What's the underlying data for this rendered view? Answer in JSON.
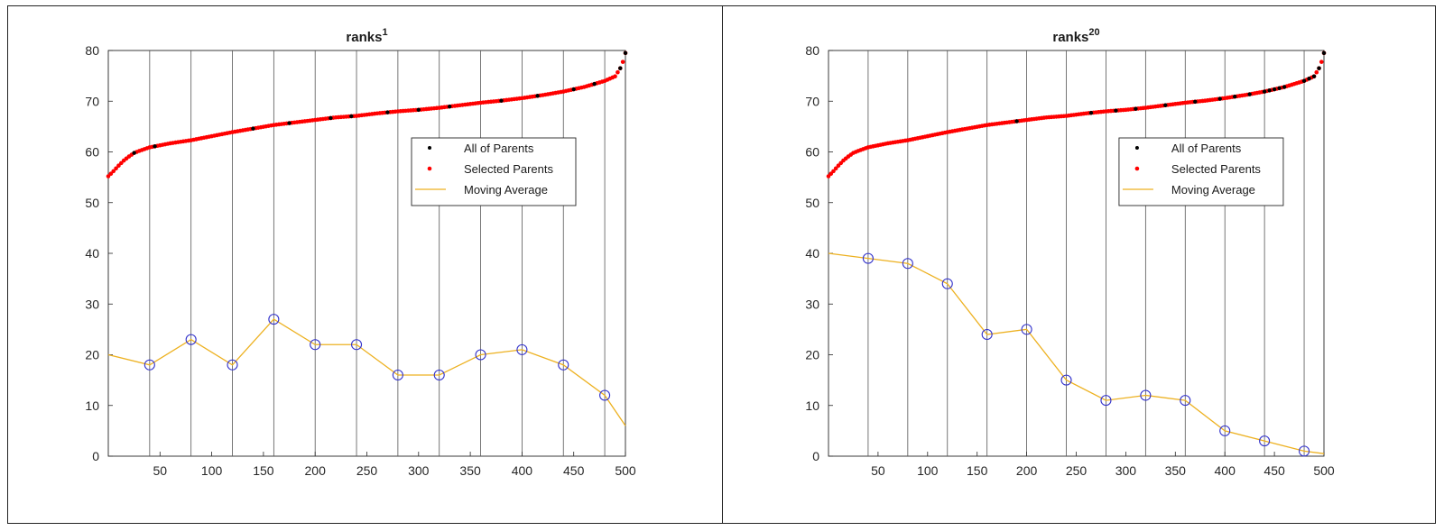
{
  "chart_data": [
    {
      "type": "scatter+line",
      "title_base": "ranks",
      "title_sup": "1",
      "xlim": [
        0,
        500
      ],
      "ylim": [
        0,
        80
      ],
      "xticks": [
        50,
        100,
        150,
        200,
        250,
        300,
        350,
        400,
        450,
        500
      ],
      "yticks": [
        0,
        10,
        20,
        30,
        40,
        50,
        60,
        70,
        80
      ],
      "vlines": [
        40,
        80,
        120,
        160,
        200,
        240,
        280,
        320,
        360,
        400,
        440,
        480
      ],
      "curve": {
        "x": [
          0,
          5,
          10,
          15,
          20,
          25,
          30,
          40,
          50,
          60,
          70,
          80,
          90,
          100,
          120,
          140,
          160,
          180,
          200,
          220,
          240,
          260,
          280,
          300,
          320,
          340,
          360,
          380,
          400,
          420,
          440,
          460,
          470,
          480,
          490,
          495,
          498,
          500
        ],
        "y": [
          55.2,
          56.2,
          57.3,
          58.3,
          59.1,
          59.8,
          60.2,
          60.9,
          61.3,
          61.7,
          62,
          62.3,
          62.7,
          63.1,
          63.9,
          64.6,
          65.3,
          65.8,
          66.3,
          66.8,
          67.1,
          67.6,
          68,
          68.3,
          68.7,
          69.2,
          69.7,
          70.1,
          70.6,
          71.2,
          71.9,
          72.8,
          73.4,
          74,
          74.9,
          76.5,
          78,
          79.5
        ]
      },
      "black_points_x": [
        25,
        45,
        140,
        175,
        215,
        235,
        270,
        300,
        330,
        380,
        415,
        450,
        470,
        495,
        500
      ],
      "moving_average": {
        "x": [
          0,
          40,
          80,
          120,
          160,
          200,
          240,
          280,
          320,
          360,
          400,
          440,
          480,
          500
        ],
        "y": [
          20,
          18,
          23,
          18,
          27,
          22,
          22,
          16,
          16,
          20,
          21,
          18,
          12,
          6
        ]
      },
      "markers_x": [
        40,
        80,
        120,
        160,
        200,
        240,
        280,
        320,
        360,
        400,
        440,
        480
      ],
      "legend": {
        "position": "center-right",
        "entries": [
          "All of Parents",
          "Selected Parents",
          "Moving Average"
        ]
      },
      "colors": {
        "all_parents": "#000000",
        "selected_parents": "#ff0000",
        "moving_average": "#edb120",
        "marker": "#3333cc"
      }
    },
    {
      "type": "scatter+line",
      "title_base": "ranks",
      "title_sup": "20",
      "xlim": [
        0,
        500
      ],
      "ylim": [
        0,
        80
      ],
      "xticks": [
        50,
        100,
        150,
        200,
        250,
        300,
        350,
        400,
        450,
        500
      ],
      "yticks": [
        0,
        10,
        20,
        30,
        40,
        50,
        60,
        70,
        80
      ],
      "vlines": [
        40,
        80,
        120,
        160,
        200,
        240,
        280,
        320,
        360,
        400,
        440,
        480
      ],
      "curve": {
        "x": [
          0,
          5,
          10,
          15,
          20,
          25,
          30,
          40,
          50,
          60,
          70,
          80,
          90,
          100,
          120,
          140,
          160,
          180,
          200,
          220,
          240,
          260,
          280,
          300,
          320,
          340,
          360,
          380,
          400,
          420,
          440,
          460,
          470,
          480,
          490,
          495,
          498,
          500
        ],
        "y": [
          55.2,
          56.2,
          57.3,
          58.3,
          59.1,
          59.8,
          60.2,
          60.9,
          61.3,
          61.7,
          62,
          62.3,
          62.7,
          63.1,
          63.9,
          64.6,
          65.3,
          65.8,
          66.3,
          66.8,
          67.1,
          67.6,
          68,
          68.3,
          68.7,
          69.2,
          69.7,
          70.1,
          70.6,
          71.2,
          71.9,
          72.8,
          73.4,
          74,
          74.9,
          76.5,
          78,
          79.5
        ]
      },
      "black_points_x": [
        190,
        265,
        290,
        310,
        340,
        370,
        395,
        410,
        425,
        440,
        445,
        450,
        455,
        460,
        480,
        485,
        490,
        495,
        500
      ],
      "moving_average": {
        "x": [
          0,
          40,
          80,
          120,
          160,
          200,
          240,
          280,
          320,
          360,
          400,
          440,
          480,
          500
        ],
        "y": [
          40,
          39,
          38,
          34,
          24,
          25,
          15,
          11,
          12,
          11,
          5,
          3,
          1,
          0.5
        ]
      },
      "markers_x": [
        40,
        80,
        120,
        160,
        200,
        240,
        280,
        320,
        360,
        400,
        440,
        480
      ],
      "legend": {
        "position": "center-right",
        "entries": [
          "All of Parents",
          "Selected Parents",
          "Moving Average"
        ]
      },
      "colors": {
        "all_parents": "#000000",
        "selected_parents": "#ff0000",
        "moving_average": "#edb120",
        "marker": "#3333cc"
      }
    }
  ]
}
